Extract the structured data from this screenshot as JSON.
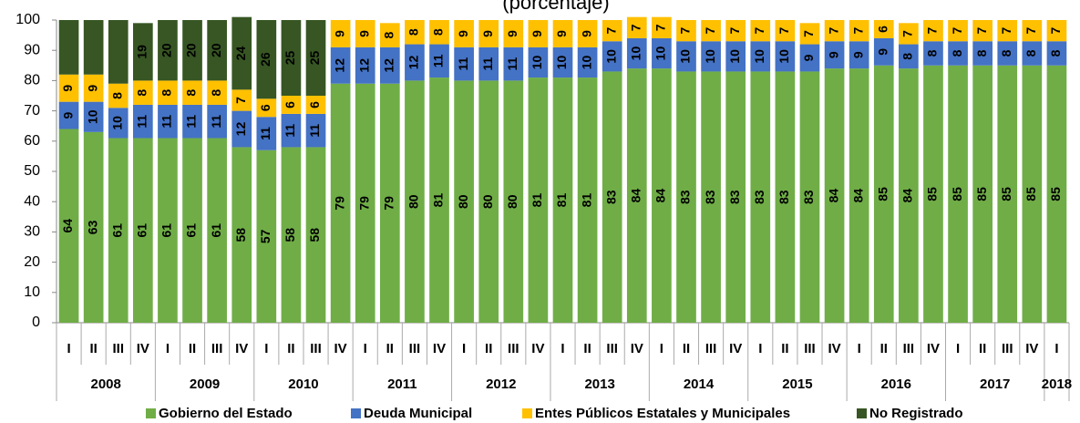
{
  "chart_data": {
    "type": "stacked_bar",
    "title": "(porcentaje)",
    "groups": [
      {
        "name": "2008",
        "categories": [
          "I",
          "II",
          "III",
          "IV"
        ]
      },
      {
        "name": "2009",
        "categories": [
          "I",
          "II",
          "III",
          "IV"
        ]
      },
      {
        "name": "2010",
        "categories": [
          "I",
          "II",
          "III",
          "IV"
        ]
      },
      {
        "name": "2011",
        "categories": [
          "I",
          "II",
          "III",
          "IV"
        ]
      },
      {
        "name": "2012",
        "categories": [
          "I",
          "II",
          "III",
          "IV"
        ]
      },
      {
        "name": "2013",
        "categories": [
          "I",
          "II",
          "III",
          "IV"
        ]
      },
      {
        "name": "2014",
        "categories": [
          "I",
          "II",
          "III",
          "IV"
        ]
      },
      {
        "name": "2015",
        "categories": [
          "I",
          "II",
          "III",
          "IV"
        ]
      },
      {
        "name": "2016",
        "categories": [
          "I",
          "II",
          "III",
          "IV"
        ]
      },
      {
        "name": "2017",
        "categories": [
          "I",
          "II",
          "III",
          "IV"
        ]
      },
      {
        "name": "2018",
        "categories": [
          "I"
        ]
      }
    ],
    "series": [
      {
        "name": "Gobierno del Estado",
        "color": "#70ad47",
        "values": [
          64,
          63,
          61,
          61,
          61,
          61,
          61,
          58,
          57,
          58,
          58,
          79,
          79,
          79,
          80,
          81,
          80,
          80,
          80,
          81,
          81,
          81,
          83,
          84,
          84,
          83,
          83,
          83,
          83,
          83,
          83,
          84,
          84,
          85,
          84,
          85,
          85,
          85,
          85,
          85,
          85
        ]
      },
      {
        "name": "Deuda Municipal",
        "color": "#4472c4",
        "values": [
          9,
          10,
          10,
          11,
          11,
          11,
          11,
          12,
          11,
          11,
          11,
          12,
          12,
          12,
          12,
          11,
          11,
          11,
          11,
          10,
          10,
          10,
          10,
          10,
          10,
          10,
          10,
          10,
          10,
          10,
          9,
          9,
          9,
          9,
          8,
          8,
          8,
          8,
          8,
          8,
          8
        ]
      },
      {
        "name": "Entes Públicos Estatales y Municipales",
        "color": "#ffc000",
        "values": [
          9,
          9,
          8,
          8,
          8,
          8,
          8,
          7,
          6,
          6,
          6,
          9,
          9,
          8,
          8,
          8,
          9,
          9,
          9,
          9,
          9,
          9,
          7,
          7,
          7,
          7,
          7,
          7,
          7,
          7,
          7,
          7,
          7,
          6,
          7,
          7,
          7,
          7,
          7,
          7,
          7
        ]
      },
      {
        "name": "No Registrado",
        "color": "#375623",
        "values": [
          18,
          18,
          21,
          19,
          20,
          20,
          20,
          24,
          26,
          25,
          25,
          null,
          null,
          null,
          null,
          null,
          null,
          null,
          null,
          null,
          null,
          null,
          null,
          null,
          null,
          null,
          null,
          null,
          null,
          null,
          null,
          null,
          null,
          null,
          null,
          null,
          null,
          null,
          null,
          null,
          null
        ],
        "value_labels": [
          null,
          null,
          null,
          "19",
          "20",
          "20",
          "20",
          "24",
          "26",
          "25",
          "25",
          null,
          null,
          null,
          null,
          null,
          null,
          null,
          null,
          null,
          null,
          null,
          null,
          null,
          null,
          null,
          null,
          null,
          null,
          null,
          null,
          null,
          null,
          null,
          null,
          null,
          null,
          null,
          null,
          null,
          null
        ]
      }
    ],
    "ylim": [
      0,
      100
    ],
    "yticks": [
      0,
      10,
      20,
      30,
      40,
      50,
      60,
      70,
      80,
      90,
      100
    ],
    "legend": "bottom"
  }
}
